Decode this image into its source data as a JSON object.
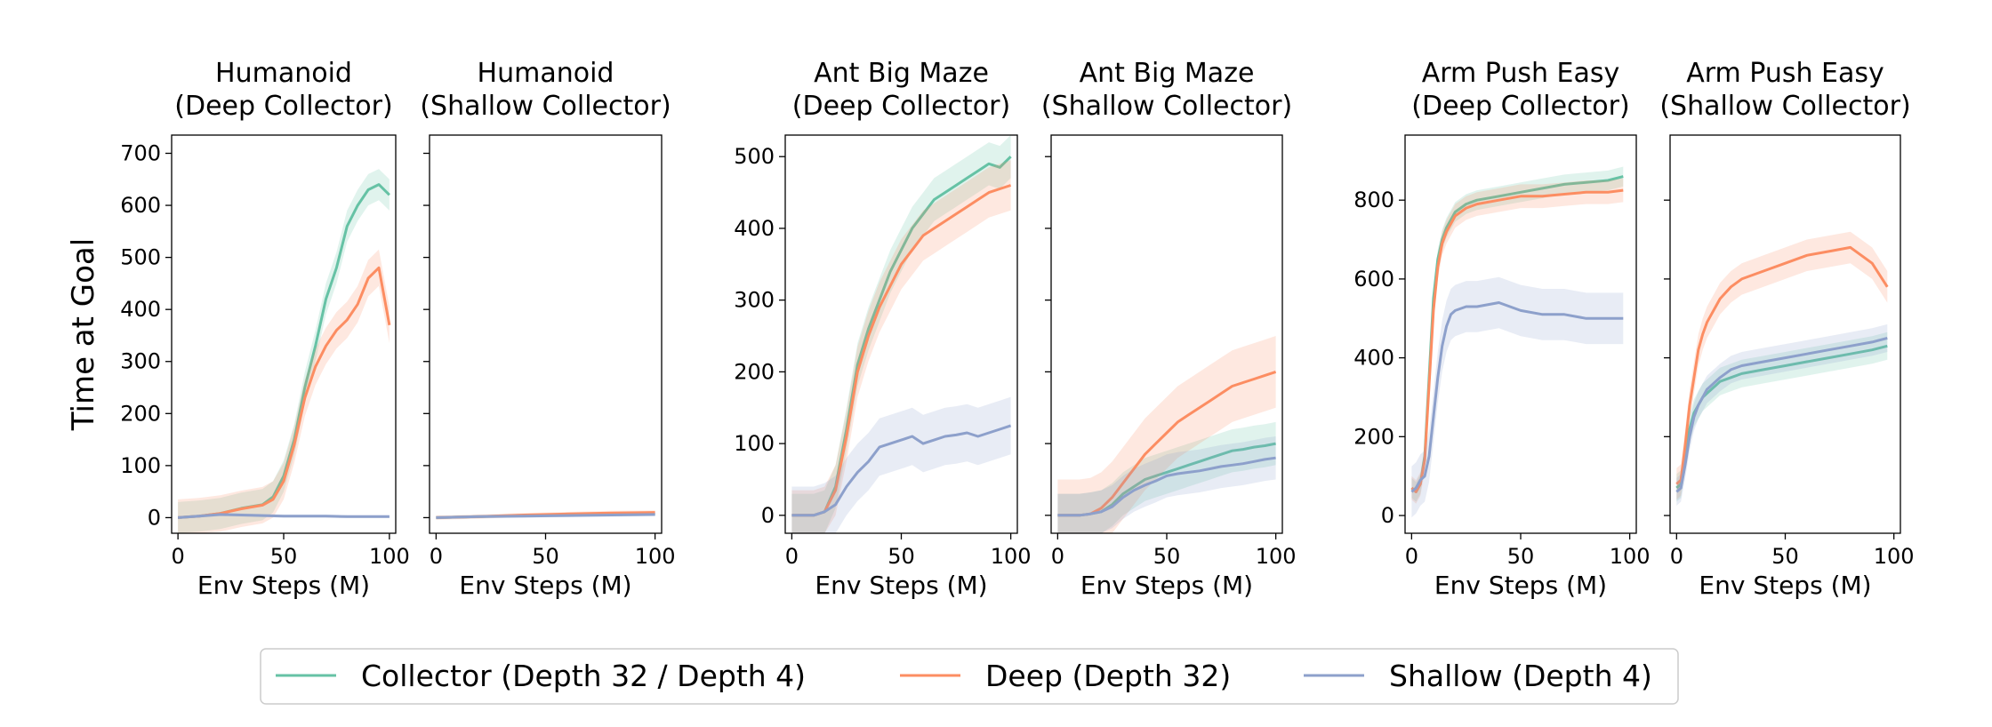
{
  "figure": {
    "ylabel": "Time at Goal",
    "xlabel": "Env Steps (M)",
    "colors": {
      "collector": "#66c2a5",
      "deep": "#fc8d62",
      "shallow": "#8da0cb"
    },
    "legend": {
      "placement": "bottom-center",
      "entries": [
        {
          "key": "collector",
          "label": "Collector (Depth 32 / Depth 4)"
        },
        {
          "key": "deep",
          "label": "Deep (Depth 32)"
        },
        {
          "key": "shallow",
          "label": "Shallow (Depth 4)"
        }
      ]
    }
  },
  "chart_data": [
    {
      "type": "line",
      "title": [
        "Humanoid",
        "(Deep Collector)"
      ],
      "xlabel": "Env Steps (M)",
      "ylabel": "Time at Goal",
      "xlim": [
        -3,
        103
      ],
      "ylim": [
        -30,
        735
      ],
      "xticks": [
        0,
        50,
        100
      ],
      "yticks": [
        0,
        100,
        200,
        300,
        400,
        500,
        600,
        700
      ],
      "show_ytick_labels": true,
      "series": [
        {
          "key": "collector",
          "x": [
            0,
            10,
            20,
            30,
            40,
            45,
            50,
            55,
            60,
            65,
            70,
            75,
            80,
            85,
            90,
            95,
            100
          ],
          "y": [
            0,
            3,
            8,
            18,
            25,
            40,
            80,
            150,
            250,
            330,
            420,
            480,
            560,
            600,
            630,
            640,
            620
          ],
          "band": 30
        },
        {
          "key": "deep",
          "x": [
            0,
            10,
            20,
            30,
            40,
            45,
            50,
            55,
            60,
            65,
            70,
            75,
            80,
            85,
            90,
            95,
            100
          ],
          "y": [
            0,
            3,
            8,
            17,
            24,
            35,
            70,
            140,
            230,
            290,
            330,
            360,
            380,
            410,
            460,
            480,
            370
          ],
          "band": 35
        },
        {
          "key": "shallow",
          "x": [
            0,
            10,
            20,
            30,
            40,
            50,
            60,
            70,
            80,
            90,
            100
          ],
          "y": [
            0,
            3,
            6,
            5,
            4,
            3,
            3,
            3,
            2,
            2,
            2
          ],
          "band": 3
        }
      ]
    },
    {
      "type": "line",
      "title": [
        "Humanoid",
        "(Shallow Collector)"
      ],
      "xlabel": "Env Steps (M)",
      "ylabel": "",
      "xlim": [
        -3,
        103
      ],
      "ylim": [
        -30,
        735
      ],
      "xticks": [
        0,
        50,
        100
      ],
      "yticks": [
        0,
        100,
        200,
        300,
        400,
        500,
        600,
        700
      ],
      "show_ytick_labels": false,
      "series": [
        {
          "key": "collector",
          "x": [
            0,
            20,
            40,
            60,
            80,
            100
          ],
          "y": [
            0,
            2,
            4,
            5,
            6,
            7
          ],
          "band": 3
        },
        {
          "key": "deep",
          "x": [
            0,
            20,
            40,
            60,
            80,
            100
          ],
          "y": [
            0,
            2,
            5,
            7,
            9,
            10
          ],
          "band": 4
        },
        {
          "key": "shallow",
          "x": [
            0,
            20,
            40,
            60,
            80,
            100
          ],
          "y": [
            0,
            2,
            3,
            4,
            5,
            6
          ],
          "band": 3
        }
      ]
    },
    {
      "type": "line",
      "title": [
        "Ant Big Maze",
        "(Deep Collector)"
      ],
      "xlabel": "Env Steps (M)",
      "ylabel": "",
      "xlim": [
        -3,
        103
      ],
      "ylim": [
        -25,
        530
      ],
      "xticks": [
        0,
        50,
        100
      ],
      "yticks": [
        0,
        100,
        200,
        300,
        400,
        500
      ],
      "show_ytick_labels": true,
      "series": [
        {
          "key": "collector",
          "x": [
            0,
            10,
            15,
            20,
            25,
            30,
            35,
            40,
            45,
            50,
            55,
            60,
            65,
            70,
            75,
            80,
            85,
            90,
            95,
            100
          ],
          "y": [
            0,
            0,
            5,
            40,
            120,
            210,
            260,
            300,
            340,
            370,
            400,
            420,
            440,
            450,
            460,
            470,
            480,
            490,
            485,
            500
          ],
          "band": 30
        },
        {
          "key": "deep",
          "x": [
            0,
            10,
            15,
            20,
            25,
            30,
            35,
            40,
            45,
            50,
            55,
            60,
            65,
            70,
            75,
            80,
            85,
            90,
            95,
            100
          ],
          "y": [
            0,
            0,
            5,
            35,
            110,
            200,
            250,
            290,
            320,
            350,
            370,
            390,
            400,
            410,
            420,
            430,
            440,
            450,
            455,
            460
          ],
          "band": 35
        },
        {
          "key": "shallow",
          "x": [
            0,
            10,
            15,
            20,
            25,
            30,
            35,
            40,
            45,
            50,
            55,
            60,
            65,
            70,
            75,
            80,
            85,
            90,
            95,
            100
          ],
          "y": [
            0,
            0,
            5,
            15,
            40,
            60,
            75,
            95,
            100,
            105,
            110,
            100,
            105,
            110,
            112,
            115,
            110,
            115,
            120,
            125
          ],
          "band": 40
        }
      ]
    },
    {
      "type": "line",
      "title": [
        "Ant Big Maze",
        "(Shallow Collector)"
      ],
      "xlabel": "Env Steps (M)",
      "ylabel": "",
      "xlim": [
        -3,
        103
      ],
      "ylim": [
        -25,
        530
      ],
      "xticks": [
        0,
        50,
        100
      ],
      "yticks": [
        0,
        100,
        200,
        300,
        400,
        500
      ],
      "show_ytick_labels": false,
      "series": [
        {
          "key": "collector",
          "x": [
            0,
            10,
            15,
            20,
            25,
            30,
            35,
            40,
            45,
            50,
            55,
            60,
            65,
            70,
            75,
            80,
            85,
            90,
            95,
            100
          ],
          "y": [
            0,
            0,
            2,
            5,
            15,
            30,
            40,
            50,
            55,
            60,
            65,
            70,
            75,
            80,
            85,
            90,
            92,
            95,
            97,
            100
          ],
          "band": 30
        },
        {
          "key": "deep",
          "x": [
            0,
            10,
            15,
            20,
            25,
            30,
            35,
            40,
            45,
            50,
            55,
            60,
            65,
            70,
            75,
            80,
            85,
            90,
            95,
            100
          ],
          "y": [
            0,
            0,
            2,
            10,
            25,
            45,
            65,
            85,
            100,
            115,
            130,
            140,
            150,
            160,
            170,
            180,
            185,
            190,
            195,
            200
          ],
          "band": 50
        },
        {
          "key": "shallow",
          "x": [
            0,
            10,
            15,
            20,
            25,
            30,
            35,
            40,
            45,
            50,
            55,
            60,
            65,
            70,
            75,
            80,
            85,
            90,
            95,
            100
          ],
          "y": [
            0,
            0,
            2,
            5,
            12,
            25,
            35,
            42,
            48,
            55,
            58,
            60,
            62,
            65,
            68,
            70,
            72,
            75,
            78,
            80
          ],
          "band": 30
        }
      ]
    },
    {
      "type": "line",
      "title": [
        "Arm Push Easy",
        "(Deep Collector)"
      ],
      "xlabel": "Env Steps (M)",
      "ylabel": "",
      "xlim": [
        -3,
        103
      ],
      "ylim": [
        -45,
        965
      ],
      "xticks": [
        0,
        50,
        100
      ],
      "yticks": [
        0,
        200,
        400,
        600,
        800
      ],
      "show_ytick_labels": true,
      "series": [
        {
          "key": "collector",
          "x": [
            0,
            2,
            4,
            6,
            8,
            10,
            12,
            14,
            16,
            18,
            20,
            25,
            30,
            40,
            50,
            60,
            70,
            80,
            90,
            97
          ],
          "y": [
            70,
            60,
            80,
            150,
            350,
            550,
            650,
            700,
            730,
            750,
            770,
            790,
            800,
            810,
            820,
            830,
            840,
            845,
            850,
            860
          ],
          "band": 25
        },
        {
          "key": "deep",
          "x": [
            0,
            2,
            4,
            6,
            8,
            10,
            12,
            14,
            16,
            18,
            20,
            25,
            30,
            40,
            50,
            60,
            70,
            80,
            90,
            97
          ],
          "y": [
            70,
            60,
            80,
            140,
            330,
            520,
            630,
            690,
            720,
            740,
            760,
            780,
            790,
            800,
            810,
            810,
            815,
            820,
            820,
            825
          ],
          "band": 30
        },
        {
          "key": "shallow",
          "x": [
            0,
            2,
            4,
            6,
            8,
            10,
            12,
            14,
            16,
            18,
            20,
            25,
            30,
            40,
            50,
            60,
            70,
            80,
            90,
            97
          ],
          "y": [
            60,
            70,
            90,
            100,
            150,
            250,
            350,
            430,
            480,
            510,
            520,
            530,
            530,
            540,
            520,
            510,
            510,
            500,
            500,
            500
          ],
          "band": 65
        }
      ]
    },
    {
      "type": "line",
      "title": [
        "Arm Push Easy",
        "(Shallow Collector)"
      ],
      "xlabel": "Env Steps (M)",
      "ylabel": "",
      "xlim": [
        -3,
        103
      ],
      "ylim": [
        -45,
        965
      ],
      "xticks": [
        0,
        50,
        100
      ],
      "yticks": [
        0,
        200,
        400,
        600,
        800
      ],
      "show_ytick_labels": false,
      "series": [
        {
          "key": "collector",
          "x": [
            0,
            2,
            4,
            6,
            8,
            10,
            12,
            14,
            16,
            18,
            20,
            25,
            30,
            40,
            50,
            60,
            70,
            80,
            90,
            97
          ],
          "y": [
            70,
            80,
            150,
            220,
            260,
            280,
            300,
            310,
            320,
            330,
            340,
            350,
            360,
            370,
            380,
            390,
            400,
            410,
            420,
            430
          ],
          "band": 35
        },
        {
          "key": "deep",
          "x": [
            0,
            2,
            4,
            6,
            8,
            10,
            12,
            14,
            16,
            18,
            20,
            25,
            30,
            40,
            50,
            60,
            70,
            80,
            90,
            97
          ],
          "y": [
            80,
            90,
            180,
            280,
            350,
            420,
            460,
            490,
            510,
            530,
            550,
            580,
            600,
            620,
            640,
            660,
            670,
            680,
            640,
            580
          ],
          "band": 40
        },
        {
          "key": "shallow",
          "x": [
            0,
            2,
            4,
            6,
            8,
            10,
            12,
            14,
            16,
            18,
            20,
            25,
            30,
            40,
            50,
            60,
            70,
            80,
            90,
            97
          ],
          "y": [
            60,
            70,
            130,
            200,
            250,
            280,
            300,
            320,
            330,
            340,
            350,
            370,
            380,
            390,
            400,
            410,
            420,
            430,
            440,
            450
          ],
          "band": 35
        }
      ]
    }
  ]
}
